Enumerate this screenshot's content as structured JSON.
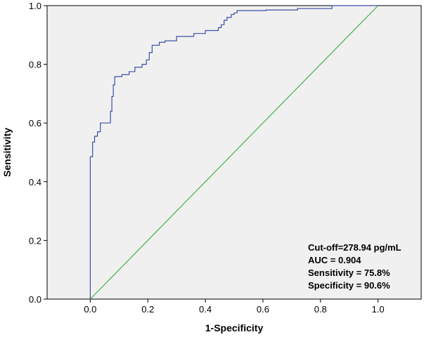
{
  "chart_data": {
    "type": "line",
    "xlabel": "1-Specificity",
    "ylabel": "Sensitivity",
    "xlim": [
      -0.15,
      1.15
    ],
    "ylim": [
      0.0,
      1.0
    ],
    "x_ticks": [
      "0.0",
      "0.2",
      "0.4",
      "0.6",
      "0.8",
      "1.0"
    ],
    "y_ticks": [
      "0.0",
      "0.2",
      "0.4",
      "0.6",
      "0.8",
      "1.0"
    ],
    "grid": false,
    "series": [
      {
        "role": "roc-curve",
        "color": "#3b4fa6",
        "points": [
          [
            0.0,
            0.0
          ],
          [
            0.0,
            0.485
          ],
          [
            0.008,
            0.485
          ],
          [
            0.008,
            0.535
          ],
          [
            0.015,
            0.535
          ],
          [
            0.015,
            0.555
          ],
          [
            0.025,
            0.555
          ],
          [
            0.025,
            0.57
          ],
          [
            0.035,
            0.57
          ],
          [
            0.035,
            0.6
          ],
          [
            0.07,
            0.6
          ],
          [
            0.07,
            0.64
          ],
          [
            0.075,
            0.64
          ],
          [
            0.075,
            0.69
          ],
          [
            0.08,
            0.69
          ],
          [
            0.08,
            0.73
          ],
          [
            0.085,
            0.73
          ],
          [
            0.085,
            0.758
          ],
          [
            0.11,
            0.758
          ],
          [
            0.11,
            0.765
          ],
          [
            0.135,
            0.765
          ],
          [
            0.135,
            0.775
          ],
          [
            0.155,
            0.775
          ],
          [
            0.155,
            0.79
          ],
          [
            0.18,
            0.79
          ],
          [
            0.18,
            0.8
          ],
          [
            0.195,
            0.8
          ],
          [
            0.195,
            0.815
          ],
          [
            0.205,
            0.815
          ],
          [
            0.205,
            0.84
          ],
          [
            0.215,
            0.84
          ],
          [
            0.215,
            0.865
          ],
          [
            0.24,
            0.865
          ],
          [
            0.24,
            0.875
          ],
          [
            0.26,
            0.875
          ],
          [
            0.26,
            0.88
          ],
          [
            0.3,
            0.88
          ],
          [
            0.3,
            0.895
          ],
          [
            0.36,
            0.895
          ],
          [
            0.36,
            0.905
          ],
          [
            0.4,
            0.905
          ],
          [
            0.4,
            0.915
          ],
          [
            0.445,
            0.915
          ],
          [
            0.445,
            0.925
          ],
          [
            0.455,
            0.925
          ],
          [
            0.455,
            0.935
          ],
          [
            0.465,
            0.935
          ],
          [
            0.465,
            0.95
          ],
          [
            0.475,
            0.95
          ],
          [
            0.475,
            0.96
          ],
          [
            0.49,
            0.96
          ],
          [
            0.49,
            0.97
          ],
          [
            0.5,
            0.97
          ],
          [
            0.5,
            0.975
          ],
          [
            0.51,
            0.975
          ],
          [
            0.51,
            0.983
          ],
          [
            0.61,
            0.983
          ],
          [
            0.61,
            0.985
          ],
          [
            0.72,
            0.985
          ],
          [
            0.72,
            0.99
          ],
          [
            0.84,
            0.99
          ],
          [
            0.84,
            1.0
          ],
          [
            1.0,
            1.0
          ]
        ]
      },
      {
        "role": "reference-line",
        "color": "#3fb34a",
        "points": [
          [
            0.0,
            0.0
          ],
          [
            1.0,
            1.0
          ]
        ]
      }
    ],
    "annotations": [
      "Cut-off=278.94 pg/mL",
      "AUC = 0.904",
      "Sensitivity = 75.8%",
      "Specificity = 90.6%"
    ]
  }
}
